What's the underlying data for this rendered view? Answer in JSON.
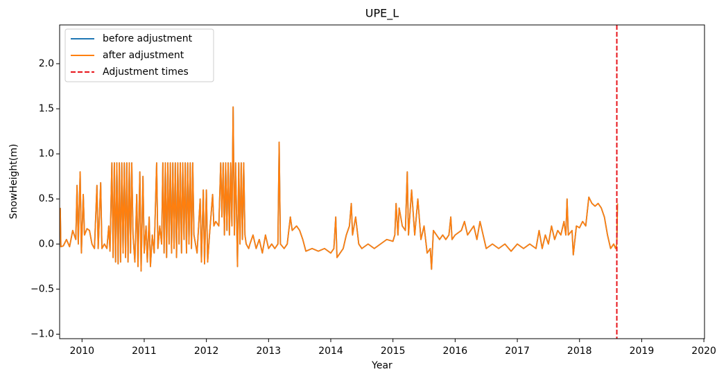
{
  "chart_data": {
    "type": "line",
    "title": "UPE_L",
    "x_label": "Year",
    "y_label": "SnowHeight(m)",
    "xlim": [
      2009.64,
      2020.01
    ],
    "ylim": [
      -1.05,
      2.43
    ],
    "xticks": [
      2010,
      2011,
      2012,
      2013,
      2014,
      2015,
      2016,
      2017,
      2018,
      2019,
      2020
    ],
    "yticks": [
      {
        "value": -1,
        "label": "−1.0"
      },
      {
        "value": -0.5,
        "label": "−0.5"
      },
      {
        "value": 0,
        "label": "0.0"
      },
      0.5,
      {
        "value": 1,
        "label": "1.0"
      },
      1.5,
      {
        "value": 2,
        "label": "2.0"
      }
    ],
    "legend": "upper left",
    "x": [
      2009.65,
      2009.66,
      2009.7,
      2009.75,
      2009.8,
      2009.85,
      2009.9,
      2009.92,
      2009.94,
      2009.97,
      2009.99,
      2010.02,
      2010.04,
      2010.08,
      2010.12,
      2010.16,
      2010.2,
      2010.24,
      2010.26,
      2010.3,
      2010.32,
      2010.36,
      2010.4,
      2010.43,
      2010.45,
      2010.48,
      2010.5,
      2010.52,
      2010.54,
      2010.56,
      2010.58,
      2010.6,
      2010.62,
      2010.64,
      2010.66,
      2010.68,
      2010.7,
      2010.72,
      2010.74,
      2010.76,
      2010.78,
      2010.8,
      2010.82,
      2010.85,
      2010.88,
      2010.9,
      2010.93,
      2010.95,
      2010.98,
      2011.0,
      2011.03,
      2011.05,
      2011.08,
      2011.1,
      2011.13,
      2011.16,
      2011.2,
      2011.22,
      2011.25,
      2011.28,
      2011.3,
      2011.32,
      2011.34,
      2011.36,
      2011.38,
      2011.4,
      2011.42,
      2011.44,
      2011.46,
      2011.48,
      2011.5,
      2011.52,
      2011.54,
      2011.56,
      2011.58,
      2011.6,
      2011.62,
      2011.64,
      2011.66,
      2011.68,
      2011.7,
      2011.72,
      2011.74,
      2011.76,
      2011.78,
      2011.8,
      2011.85,
      2011.9,
      2011.92,
      2011.95,
      2011.97,
      2012.0,
      2012.02,
      2012.05,
      2012.1,
      2012.12,
      2012.15,
      2012.2,
      2012.23,
      2012.25,
      2012.27,
      2012.29,
      2012.31,
      2012.33,
      2012.35,
      2012.37,
      2012.39,
      2012.41,
      2012.43,
      2012.45,
      2012.47,
      2012.5,
      2012.52,
      2012.54,
      2012.56,
      2012.58,
      2012.6,
      2012.62,
      2012.64,
      2012.68,
      2012.7,
      2012.75,
      2012.8,
      2012.85,
      2012.9,
      2012.95,
      2013.0,
      2013.05,
      2013.1,
      2013.15,
      2013.17,
      2013.19,
      2013.25,
      2013.3,
      2013.35,
      2013.38,
      2013.45,
      2013.5,
      2013.55,
      2013.6,
      2013.7,
      2013.8,
      2013.9,
      2014.0,
      2014.05,
      2014.08,
      2014.1,
      2014.2,
      2014.25,
      2014.3,
      2014.33,
      2014.35,
      2014.4,
      2014.45,
      2014.5,
      2014.6,
      2014.7,
      2014.8,
      2014.9,
      2015.0,
      2015.03,
      2015.05,
      2015.08,
      2015.1,
      2015.15,
      2015.2,
      2015.23,
      2015.25,
      2015.3,
      2015.35,
      2015.4,
      2015.45,
      2015.5,
      2015.55,
      2015.6,
      2015.62,
      2015.65,
      2015.7,
      2015.75,
      2015.8,
      2015.85,
      2015.9,
      2015.93,
      2015.95,
      2016.0,
      2016.1,
      2016.15,
      2016.2,
      2016.3,
      2016.35,
      2016.4,
      2016.5,
      2016.6,
      2016.7,
      2016.8,
      2016.9,
      2017.0,
      2017.1,
      2017.2,
      2017.3,
      2017.35,
      2017.4,
      2017.45,
      2017.5,
      2017.55,
      2017.6,
      2017.65,
      2017.7,
      2017.75,
      2017.78,
      2017.8,
      2017.82,
      2017.88,
      2017.9,
      2017.95,
      2018.0,
      2018.05,
      2018.1,
      2018.15,
      2018.2,
      2018.25,
      2018.3,
      2018.35,
      2018.4,
      2018.45,
      2018.5,
      2018.55,
      2018.58,
      2018.6,
      2018.61
    ],
    "series": [
      {
        "name": "before adjustment",
        "color": "#1f77b4",
        "values": [
          0.4,
          -0.03,
          -0.02,
          0.05,
          -0.03,
          0.15,
          0.05,
          0.65,
          0.0,
          0.8,
          -0.1,
          0.55,
          0.1,
          0.17,
          0.15,
          0.0,
          -0.05,
          0.65,
          -0.05,
          0.68,
          -0.05,
          0.0,
          -0.05,
          0.2,
          -0.08,
          0.9,
          -0.15,
          0.9,
          -0.2,
          0.9,
          -0.22,
          0.9,
          -0.2,
          0.9,
          -0.1,
          0.9,
          -0.15,
          0.9,
          -0.2,
          0.9,
          -0.1,
          0.9,
          0.1,
          -0.2,
          0.55,
          -0.25,
          0.8,
          -0.3,
          0.75,
          -0.1,
          0.2,
          -0.2,
          0.3,
          -0.25,
          0.1,
          -0.1,
          0.9,
          -0.05,
          0.2,
          0.0,
          0.9,
          -0.1,
          0.9,
          -0.15,
          0.9,
          0.0,
          0.9,
          -0.1,
          0.9,
          -0.05,
          0.9,
          -0.15,
          0.9,
          0.0,
          0.9,
          -0.1,
          0.9,
          0.05,
          0.9,
          -0.1,
          0.9,
          0.0,
          0.9,
          -0.05,
          0.9,
          0.1,
          -0.1,
          0.5,
          -0.2,
          0.6,
          -0.22,
          0.6,
          -0.2,
          0.1,
          0.55,
          0.2,
          0.25,
          0.2,
          0.9,
          0.3,
          0.9,
          0.1,
          0.9,
          0.15,
          0.9,
          0.1,
          0.9,
          0.2,
          1.52,
          0.1,
          0.9,
          -0.25,
          0.9,
          0.0,
          0.9,
          0.05,
          0.9,
          0.1,
          0.0,
          -0.05,
          0.0,
          0.1,
          -0.05,
          0.05,
          -0.1,
          0.1,
          -0.05,
          0.0,
          -0.05,
          0.0,
          1.13,
          0.0,
          -0.05,
          0.0,
          0.3,
          0.15,
          0.2,
          0.15,
          0.05,
          -0.08,
          -0.05,
          -0.08,
          -0.05,
          -0.1,
          -0.05,
          0.3,
          -0.15,
          -0.05,
          0.1,
          0.2,
          0.45,
          0.1,
          0.3,
          0.0,
          -0.05,
          0.0,
          -0.05,
          0.0,
          0.05,
          0.03,
          0.1,
          0.45,
          0.1,
          0.4,
          0.2,
          0.15,
          0.8,
          0.1,
          0.6,
          0.1,
          0.5,
          0.05,
          0.2,
          -0.1,
          -0.05,
          -0.28,
          0.15,
          0.1,
          0.05,
          0.1,
          0.05,
          0.1,
          0.3,
          0.05,
          0.1,
          0.15,
          0.25,
          0.1,
          0.2,
          0.05,
          0.25,
          -0.05,
          0.0,
          -0.05,
          0.0,
          -0.08,
          0.0,
          -0.05,
          0.0,
          -0.05,
          0.15,
          -0.05,
          0.1,
          0.0,
          0.2,
          0.05,
          0.15,
          0.1,
          0.25,
          0.1,
          0.5,
          0.1,
          0.15,
          -0.12,
          0.2,
          0.18,
          0.25,
          0.2,
          0.52,
          0.45,
          0.42,
          0.45,
          0.4,
          0.3,
          0.1,
          -0.05,
          0.0,
          -0.05,
          0.0,
          0.45
        ]
      },
      {
        "name": "after adjustment",
        "color": "#ff7f0e",
        "values": [
          0.4,
          -0.03,
          -0.02,
          0.05,
          -0.03,
          0.15,
          0.05,
          0.65,
          0.0,
          0.8,
          -0.1,
          0.55,
          0.1,
          0.17,
          0.15,
          0.0,
          -0.05,
          0.65,
          -0.05,
          0.68,
          -0.05,
          0.0,
          -0.05,
          0.2,
          -0.08,
          0.9,
          -0.15,
          0.9,
          -0.2,
          0.9,
          -0.22,
          0.9,
          -0.2,
          0.9,
          -0.1,
          0.9,
          -0.15,
          0.9,
          -0.2,
          0.9,
          -0.1,
          0.9,
          0.1,
          -0.2,
          0.55,
          -0.25,
          0.8,
          -0.3,
          0.75,
          -0.1,
          0.2,
          -0.2,
          0.3,
          -0.25,
          0.1,
          -0.1,
          0.9,
          -0.05,
          0.2,
          0.0,
          0.9,
          -0.1,
          0.9,
          -0.15,
          0.9,
          0.0,
          0.9,
          -0.1,
          0.9,
          -0.05,
          0.9,
          -0.15,
          0.9,
          0.0,
          0.9,
          -0.1,
          0.9,
          0.05,
          0.9,
          -0.1,
          0.9,
          0.0,
          0.9,
          -0.05,
          0.9,
          0.1,
          -0.1,
          0.5,
          -0.2,
          0.6,
          -0.22,
          0.6,
          -0.2,
          0.1,
          0.55,
          0.2,
          0.25,
          0.2,
          0.9,
          0.3,
          0.9,
          0.1,
          0.9,
          0.15,
          0.9,
          0.1,
          0.9,
          0.2,
          1.52,
          0.1,
          0.9,
          -0.25,
          0.9,
          0.0,
          0.9,
          0.05,
          0.9,
          0.1,
          0.0,
          -0.05,
          0.0,
          0.1,
          -0.05,
          0.05,
          -0.1,
          0.1,
          -0.05,
          0.0,
          -0.05,
          0.0,
          1.13,
          0.0,
          -0.05,
          0.0,
          0.3,
          0.15,
          0.2,
          0.15,
          0.05,
          -0.08,
          -0.05,
          -0.08,
          -0.05,
          -0.1,
          -0.05,
          0.3,
          -0.15,
          -0.05,
          0.1,
          0.2,
          0.45,
          0.1,
          0.3,
          0.0,
          -0.05,
          0.0,
          -0.05,
          0.0,
          0.05,
          0.03,
          0.1,
          0.45,
          0.1,
          0.4,
          0.2,
          0.15,
          0.8,
          0.1,
          0.6,
          0.1,
          0.5,
          0.05,
          0.2,
          -0.1,
          -0.05,
          -0.28,
          0.15,
          0.1,
          0.05,
          0.1,
          0.05,
          0.1,
          0.3,
          0.05,
          0.1,
          0.15,
          0.25,
          0.1,
          0.2,
          0.05,
          0.25,
          -0.05,
          0.0,
          -0.05,
          0.0,
          -0.08,
          0.0,
          -0.05,
          0.0,
          -0.05,
          0.15,
          -0.05,
          0.1,
          0.0,
          0.2,
          0.05,
          0.15,
          0.1,
          0.25,
          0.1,
          0.5,
          0.1,
          0.15,
          -0.12,
          0.2,
          0.18,
          0.25,
          0.2,
          0.52,
          0.45,
          0.42,
          0.45,
          0.4,
          0.3,
          0.1,
          -0.05,
          0.0,
          -0.05,
          0.0,
          0.45
        ]
      }
    ],
    "adjustment_times": {
      "name": "Adjustment times",
      "color": "#e8141a",
      "x": [
        2018.6
      ]
    }
  }
}
